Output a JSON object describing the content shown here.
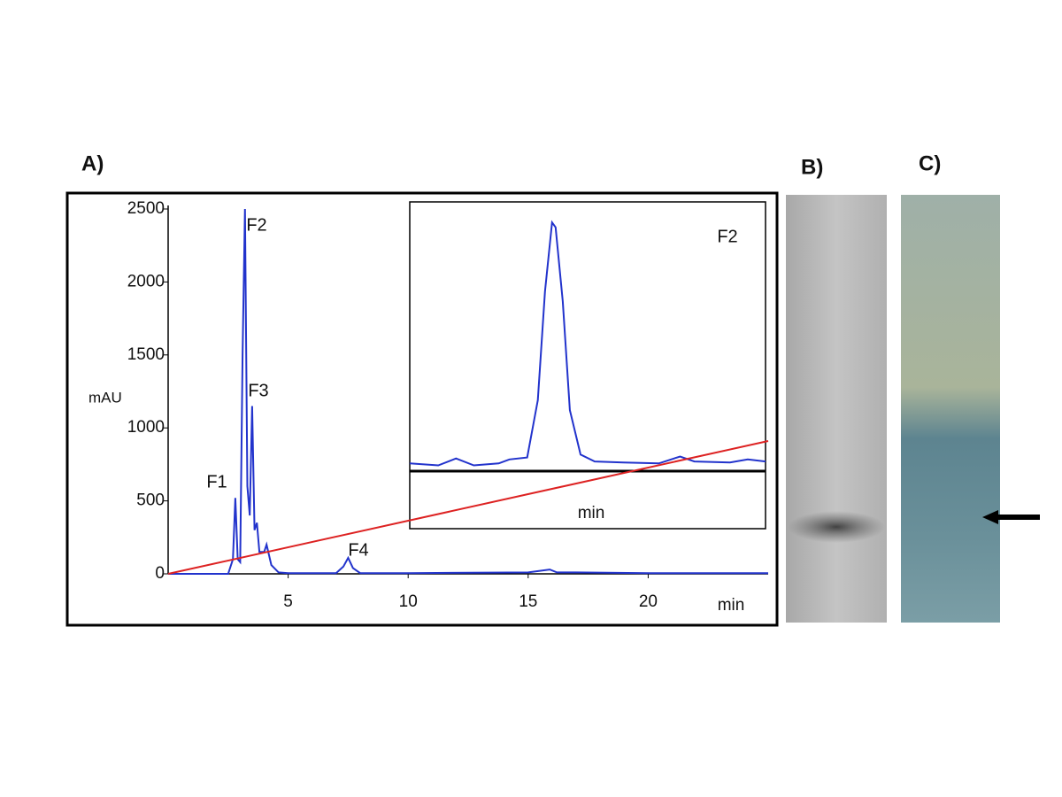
{
  "panels": [
    "A)",
    "B)",
    "C)"
  ],
  "chart_data": [
    {
      "type": "line",
      "ylabel": "mAU",
      "xlabel": "min",
      "xlim": [
        0,
        25
      ],
      "xticks": [
        5,
        10,
        15,
        20
      ],
      "ylim": [
        0,
        2500
      ],
      "yticks": [
        0,
        500,
        1000,
        1500,
        2000,
        2500
      ],
      "annotations": [
        "F1",
        "F2",
        "F3",
        "F4"
      ],
      "series": [
        {
          "color": "#2233cc",
          "x": [
            0,
            2.5,
            2.7,
            2.8,
            2.9,
            3.0,
            3.1,
            3.2,
            3.3,
            3.4,
            3.5,
            3.6,
            3.7,
            3.8,
            4.0,
            4.1,
            4.3,
            4.6,
            5,
            7,
            7.3,
            7.5,
            7.7,
            8,
            10,
            15,
            15.9,
            16.2,
            17,
            20,
            25
          ],
          "values": [
            0,
            0,
            100,
            520,
            100,
            80,
            1500,
            2500,
            600,
            400,
            1150,
            300,
            350,
            150,
            150,
            200,
            60,
            10,
            5,
            5,
            50,
            110,
            40,
            5,
            5,
            10,
            30,
            10,
            10,
            5,
            5
          ]
        },
        {
          "color": "#dd2222",
          "x": [
            0,
            25
          ],
          "values": [
            0,
            910
          ]
        }
      ]
    },
    {
      "type": "line",
      "xlabel": "min",
      "annotations": [
        "F2"
      ],
      "xlim": [
        0,
        10
      ],
      "ylim": [
        0,
        2600
      ],
      "series": [
        {
          "color": "#2233cc",
          "x": [
            0,
            0.8,
            1.3,
            1.8,
            2.5,
            2.8,
            3.3,
            3.6,
            3.8,
            4.0,
            4.1,
            4.3,
            4.5,
            4.8,
            5.2,
            6,
            7,
            7.6,
            8,
            9,
            9.5,
            10
          ],
          "values": [
            60,
            40,
            110,
            40,
            60,
            100,
            120,
            700,
            1800,
            2500,
            2450,
            1700,
            600,
            150,
            80,
            70,
            60,
            130,
            80,
            70,
            100,
            80
          ]
        }
      ]
    }
  ]
}
